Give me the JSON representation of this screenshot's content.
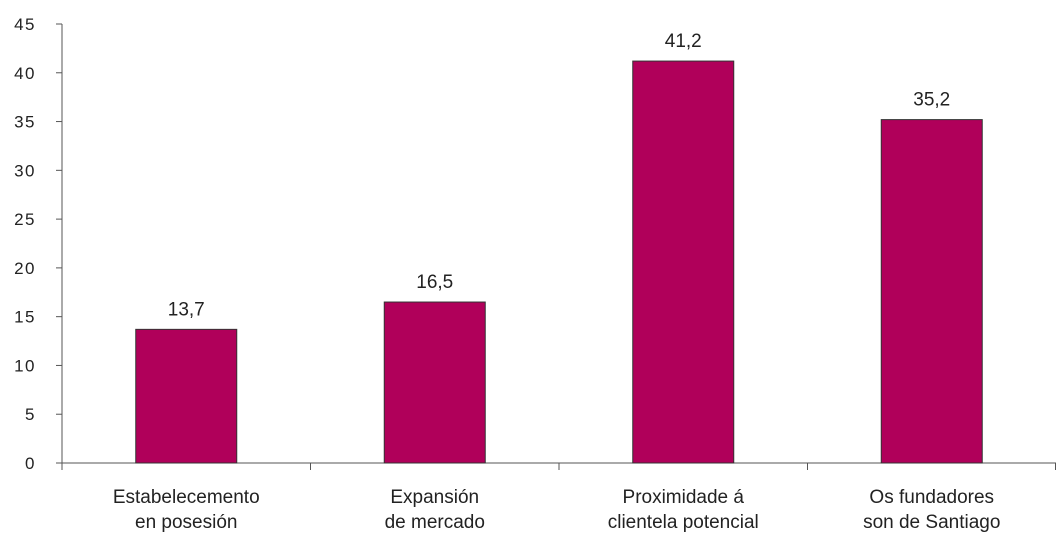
{
  "chart_data": {
    "type": "bar",
    "categories": [
      [
        "Estabelecemento",
        "en posesión"
      ],
      [
        "Expansión",
        "de mercado"
      ],
      [
        "Proximidade á",
        "clientela potencial"
      ],
      [
        "Os fundadores",
        "son de Santiago"
      ]
    ],
    "values": [
      13.7,
      16.5,
      41.2,
      35.2
    ],
    "value_labels": [
      "13,7",
      "16,5",
      "41,2",
      "35,2"
    ],
    "ylim": [
      0,
      45
    ],
    "yticks": [
      0,
      5,
      10,
      15,
      20,
      25,
      30,
      35,
      40,
      45
    ],
    "ytick_labels": [
      "0",
      "5",
      "10",
      "15",
      "20",
      "25",
      "30",
      "35",
      "40",
      "45"
    ],
    "bar_color": "#b0005a",
    "grid": false
  }
}
